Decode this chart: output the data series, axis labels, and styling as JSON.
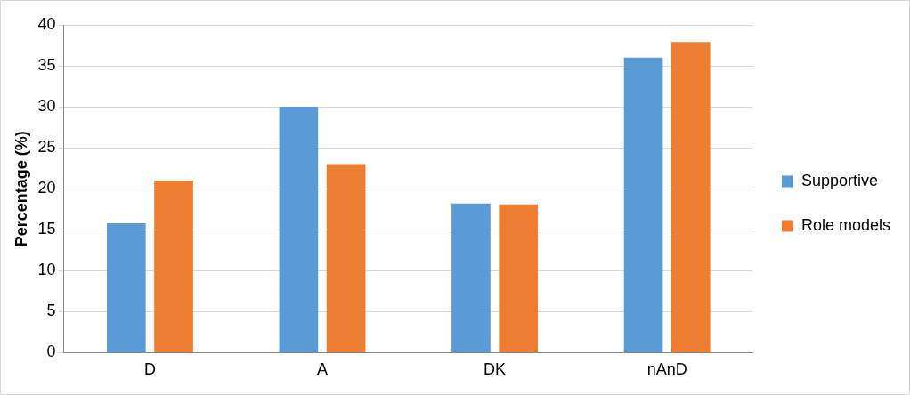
{
  "chart_data": {
    "type": "bar",
    "ylabel": "Percentage (%)",
    "categories": [
      "D",
      "A",
      "DK",
      "nAnD"
    ],
    "series": [
      {
        "name": "Supportive",
        "color": "#5b9bd5",
        "values": [
          15.8,
          30,
          18.2,
          36
        ]
      },
      {
        "name": "Role models",
        "color": "#ed7d31",
        "values": [
          21,
          23,
          18.1,
          37.9
        ]
      }
    ],
    "ylim": [
      0,
      40
    ],
    "yticks": [
      0,
      5,
      10,
      15,
      20,
      25,
      30,
      35,
      40
    ],
    "grid": "y",
    "legend": "right"
  }
}
